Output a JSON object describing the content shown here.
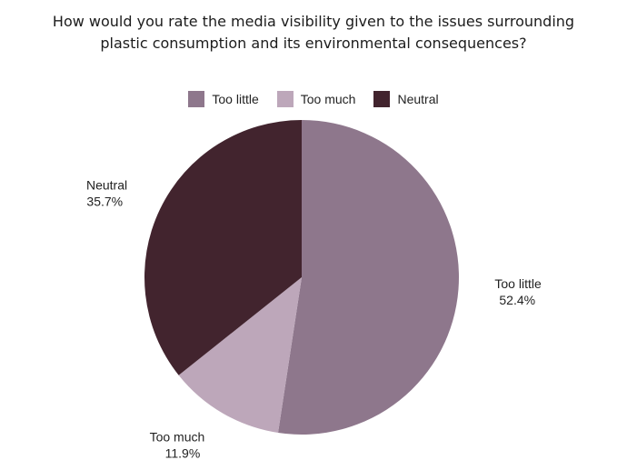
{
  "chart_data": {
    "type": "pie",
    "title": "How would you rate the media visibility given to the issues surrounding plastic consumption and its environmental consequences?",
    "categories": [
      "Too little",
      "Too much",
      "Neutral"
    ],
    "values": [
      52.4,
      11.9,
      35.7
    ],
    "value_labels": [
      "52.4%",
      "11.9%",
      "35.7%"
    ],
    "colors": [
      "#8e778c",
      "#bda7ba",
      "#42242e"
    ],
    "legend_position": "top"
  }
}
